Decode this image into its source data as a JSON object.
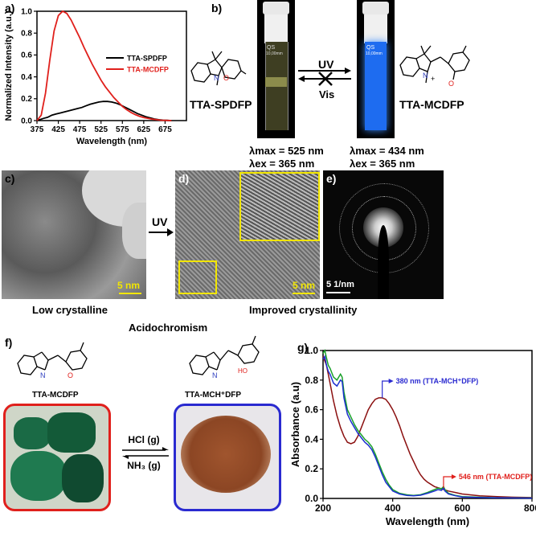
{
  "panel_labels": {
    "a": "a)",
    "b": "b)",
    "c": "c)",
    "d": "d)",
    "e": "e)",
    "f": "f)",
    "g": "g)"
  },
  "panel_b": {
    "left_label": "TTA-SPDFP",
    "right_label": "TTA-MCDFP",
    "arrow_uv": "UV",
    "arrow_vis": "Vis",
    "cuvette_text_1": "QS",
    "cuvette_text_2": "10,00mm",
    "left_lmax": "λmax = 525 nm",
    "left_lex": "λex = 365 nm",
    "right_lmax": "λmax = 434 nm",
    "right_lex": "λex = 365 nm",
    "colors": {
      "cuvette_left": "#6a6a38",
      "cuvette_right": "#1e6cf0"
    }
  },
  "panel_c": {
    "scale": "5 nm",
    "caption": "Low crystalline"
  },
  "arrow_cd": "UV",
  "panel_d": {
    "scale": "5 nm",
    "caption": "Improved crystallinity"
  },
  "panel_e": {
    "scale": "5 1/nm"
  },
  "panel_f": {
    "title": "Acidochromism",
    "left_label": "TTA-MCDFP",
    "right_label": "TTA-MCH⁺DFP",
    "hcl": "HCl (g)",
    "nh3": "NH₃ (g)",
    "colors": {
      "left_border": "#e0201c",
      "right_border": "#2a2ad0",
      "green_powder": "#1a6a45",
      "brown_powder": "#a0552e"
    }
  },
  "chart_data": [
    {
      "type": "line",
      "panel": "a",
      "xlabel": "Wavelength (nm)",
      "ylabel": "Normalized Intensity (a.u.)",
      "xlim": [
        375,
        725
      ],
      "ylim": [
        0,
        1.0
      ],
      "xticks": [
        375,
        425,
        475,
        525,
        575,
        625,
        675
      ],
      "yticks": [
        0.0,
        0.2,
        0.4,
        0.6,
        0.8,
        1.0
      ],
      "legend_position": "right",
      "series": [
        {
          "name": "TTA-SPDFP",
          "color": "#000000",
          "x": [
            375,
            390,
            400,
            410,
            420,
            430,
            440,
            450,
            460,
            470,
            480,
            490,
            500,
            510,
            520,
            530,
            540,
            550,
            560,
            570,
            580,
            590,
            600,
            610,
            620,
            630,
            640,
            650,
            660,
            670,
            680,
            690
          ],
          "y": [
            0.0,
            0.02,
            0.03,
            0.05,
            0.06,
            0.07,
            0.08,
            0.09,
            0.1,
            0.11,
            0.12,
            0.135,
            0.15,
            0.16,
            0.17,
            0.175,
            0.175,
            0.17,
            0.16,
            0.145,
            0.125,
            0.105,
            0.085,
            0.065,
            0.05,
            0.035,
            0.025,
            0.015,
            0.008,
            0.004,
            0.002,
            0.0
          ]
        },
        {
          "name": "TTA-MCDFP",
          "color": "#e0201c",
          "x": [
            375,
            385,
            395,
            405,
            415,
            425,
            435,
            445,
            455,
            465,
            475,
            485,
            495,
            505,
            515,
            525,
            535,
            545,
            555,
            565,
            575,
            585,
            595,
            605,
            615,
            625,
            635,
            645,
            655,
            665,
            675,
            690
          ],
          "y": [
            0.0,
            0.05,
            0.25,
            0.55,
            0.82,
            0.96,
            1.0,
            0.98,
            0.92,
            0.84,
            0.76,
            0.67,
            0.59,
            0.51,
            0.44,
            0.37,
            0.31,
            0.26,
            0.21,
            0.17,
            0.13,
            0.1,
            0.075,
            0.055,
            0.04,
            0.028,
            0.02,
            0.013,
            0.008,
            0.004,
            0.002,
            0.0
          ]
        }
      ]
    },
    {
      "type": "line",
      "panel": "g",
      "xlabel": "Wavelength (nm)",
      "ylabel": "Absorbance (a.u)",
      "xlim": [
        200,
        800
      ],
      "ylim": [
        0,
        1.0
      ],
      "xticks": [
        200,
        400,
        600,
        800
      ],
      "yticks": [
        0.0,
        0.2,
        0.4,
        0.6,
        0.8,
        1.0
      ],
      "annotations": [
        {
          "text": "380 nm (TTA-MCH⁺DFP)",
          "x": 370,
          "y": 0.68,
          "color": "#2a2ad0"
        },
        {
          "text": "546 nm (TTA-MCDFP)",
          "x": 546,
          "y": 0.07,
          "color": "#e0201c"
        }
      ],
      "series": [
        {
          "name": "",
          "color": "#8b1010",
          "x": [
            200,
            210,
            220,
            230,
            240,
            250,
            260,
            270,
            280,
            290,
            300,
            310,
            320,
            330,
            340,
            350,
            360,
            370,
            380,
            390,
            400,
            410,
            420,
            430,
            440,
            450,
            460,
            470,
            480,
            490,
            500,
            520,
            540,
            560,
            580,
            600,
            650,
            700,
            750,
            800
          ],
          "y": [
            0.96,
            0.9,
            0.78,
            0.66,
            0.56,
            0.48,
            0.42,
            0.38,
            0.37,
            0.38,
            0.42,
            0.48,
            0.54,
            0.6,
            0.64,
            0.67,
            0.68,
            0.68,
            0.67,
            0.64,
            0.6,
            0.55,
            0.49,
            0.42,
            0.36,
            0.3,
            0.25,
            0.2,
            0.16,
            0.13,
            0.11,
            0.08,
            0.065,
            0.05,
            0.04,
            0.03,
            0.018,
            0.012,
            0.008,
            0.006
          ]
        },
        {
          "name": "",
          "color": "#1aa12a",
          "x": [
            200,
            205,
            210,
            215,
            220,
            230,
            240,
            250,
            255,
            260,
            270,
            280,
            290,
            300,
            310,
            320,
            330,
            340,
            350,
            360,
            370,
            380,
            390,
            400,
            420,
            440,
            460,
            480,
            500,
            520,
            530,
            540,
            546,
            550,
            560,
            580,
            600,
            650,
            700,
            800
          ],
          "y": [
            0.98,
            1.0,
            0.95,
            0.9,
            0.88,
            0.82,
            0.8,
            0.84,
            0.82,
            0.72,
            0.6,
            0.55,
            0.5,
            0.46,
            0.43,
            0.4,
            0.38,
            0.35,
            0.3,
            0.24,
            0.18,
            0.13,
            0.09,
            0.06,
            0.035,
            0.025,
            0.02,
            0.025,
            0.04,
            0.06,
            0.07,
            0.065,
            0.08,
            0.06,
            0.035,
            0.02,
            0.012,
            0.008,
            0.005,
            0.003
          ]
        },
        {
          "name": "",
          "color": "#1c2fd0",
          "x": [
            200,
            205,
            210,
            215,
            220,
            230,
            240,
            250,
            255,
            260,
            270,
            280,
            290,
            300,
            310,
            320,
            330,
            340,
            350,
            360,
            370,
            380,
            390,
            400,
            420,
            440,
            460,
            480,
            500,
            520,
            530,
            540,
            546,
            550,
            560,
            580,
            600,
            650,
            700,
            800
          ],
          "y": [
            0.94,
            0.96,
            0.9,
            0.86,
            0.84,
            0.78,
            0.76,
            0.8,
            0.79,
            0.68,
            0.57,
            0.52,
            0.48,
            0.44,
            0.41,
            0.38,
            0.36,
            0.33,
            0.28,
            0.22,
            0.16,
            0.11,
            0.08,
            0.05,
            0.03,
            0.02,
            0.018,
            0.022,
            0.035,
            0.05,
            0.06,
            0.055,
            0.07,
            0.05,
            0.03,
            0.018,
            0.01,
            0.006,
            0.004,
            0.002
          ]
        }
      ]
    }
  ]
}
